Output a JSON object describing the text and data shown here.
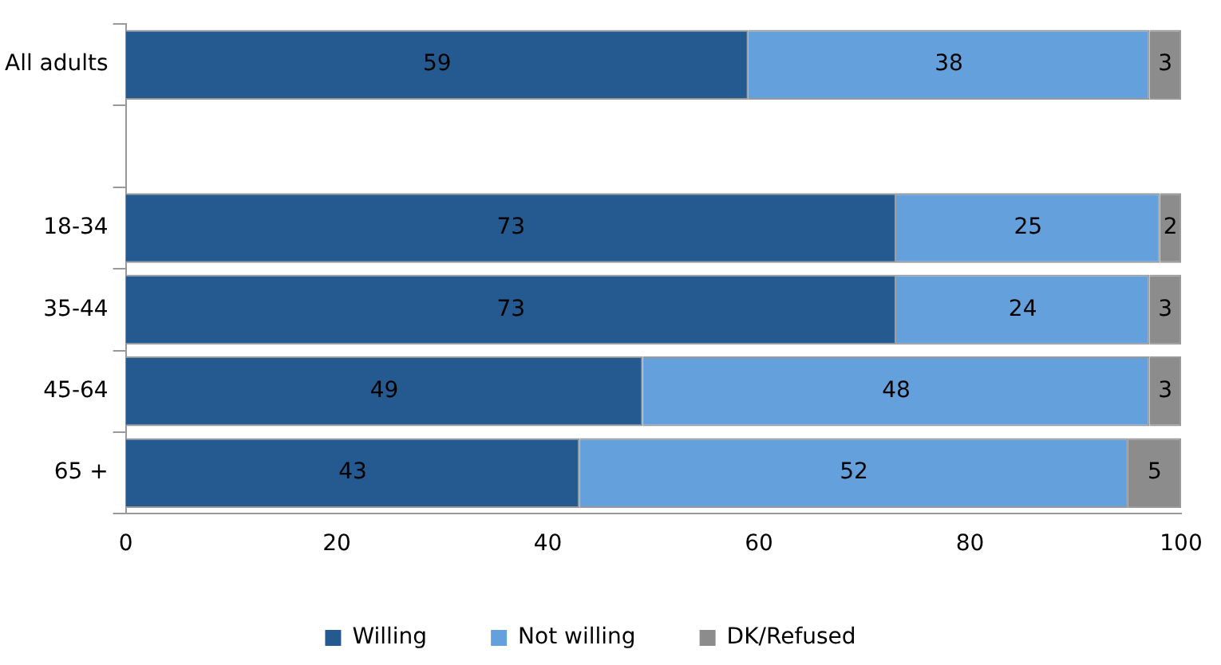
{
  "chart_data": {
    "type": "bar",
    "orientation": "horizontal",
    "stacked": true,
    "categories": [
      "All adults",
      null,
      "18-34",
      "35-44",
      "45-64",
      "65 +"
    ],
    "series": [
      {
        "name": "Willing",
        "color": "#245a8f",
        "values": [
          59,
          null,
          73,
          73,
          49,
          43
        ]
      },
      {
        "name": "Not willing",
        "color": "#64a0dc",
        "values": [
          38,
          null,
          25,
          24,
          48,
          52
        ]
      },
      {
        "name": "DK/Refused",
        "color": "#8c8c8c",
        "values": [
          3,
          null,
          2,
          3,
          3,
          5
        ]
      }
    ],
    "xlim": [
      0,
      100
    ],
    "xticks": [
      0,
      20,
      40,
      60,
      80,
      100
    ],
    "grid": false,
    "legend": "bottom",
    "data_labels": true
  }
}
